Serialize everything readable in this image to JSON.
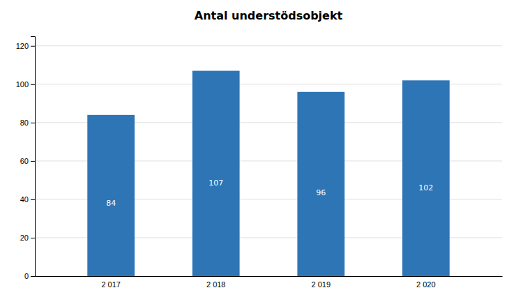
{
  "chart_data": {
    "type": "bar",
    "title": "Antal understödsobjekt",
    "categories": [
      "2 017",
      "2 018",
      "2 019",
      "2 020"
    ],
    "values": [
      84,
      107,
      96,
      102
    ],
    "color": "#2E75B6",
    "ylim": [
      0,
      125
    ],
    "yticks": [
      0,
      20,
      40,
      60,
      80,
      100,
      120
    ],
    "grid": true,
    "data_labels": true
  }
}
